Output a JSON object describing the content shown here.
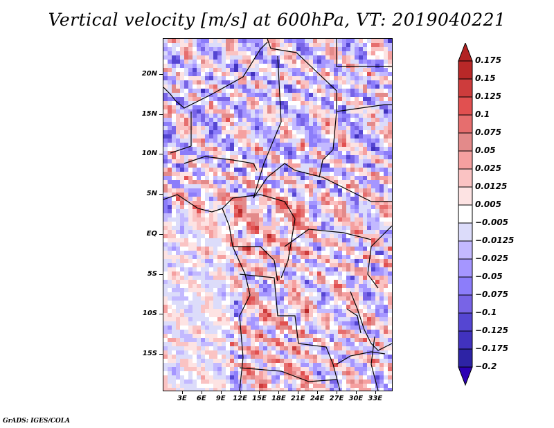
{
  "title": "Vertical velocity [m/s] at 600hPa, VT: 2019040221",
  "credit": "GrADS: IGES/COLA",
  "map": {
    "variable": "Vertical velocity",
    "units": "m/s",
    "level": "600hPa",
    "valid_time": "2019040221",
    "lat_range": [
      -19.5,
      24.5
    ],
    "lon_range": [
      0,
      35.5
    ],
    "lat_ticks": [
      {
        "value": 20,
        "label": "20N"
      },
      {
        "value": 15,
        "label": "15N"
      },
      {
        "value": 10,
        "label": "10N"
      },
      {
        "value": 5,
        "label": "5N"
      },
      {
        "value": 0,
        "label": "EQ"
      },
      {
        "value": -5,
        "label": "5S"
      },
      {
        "value": -10,
        "label": "10S"
      },
      {
        "value": -15,
        "label": "15S"
      }
    ],
    "lon_ticks": [
      {
        "value": 3,
        "label": "3E"
      },
      {
        "value": 6,
        "label": "6E"
      },
      {
        "value": 9,
        "label": "9E"
      },
      {
        "value": 12,
        "label": "12E"
      },
      {
        "value": 15,
        "label": "15E"
      },
      {
        "value": 18,
        "label": "18E"
      },
      {
        "value": 21,
        "label": "21E"
      },
      {
        "value": 24,
        "label": "24E"
      },
      {
        "value": 27,
        "label": "27E"
      },
      {
        "value": 30,
        "label": "30E"
      },
      {
        "value": 33,
        "label": "33E"
      }
    ]
  },
  "colorbar": {
    "levels": [
      {
        "label": "0.175",
        "color": "#b22222"
      },
      {
        "label": "0.15",
        "color": "#c83232"
      },
      {
        "label": "0.125",
        "color": "#dc4646"
      },
      {
        "label": "0.1",
        "color": "#e65a5a"
      },
      {
        "label": "0.075",
        "color": "#e87373"
      },
      {
        "label": "0.05",
        "color": "#e68c8c"
      },
      {
        "label": "0.025",
        "color": "#f5a0a0"
      },
      {
        "label": "0.0125",
        "color": "#fac8c8"
      },
      {
        "label": "0.005",
        "color": "#ffe6e6"
      },
      {
        "label": "-0.005",
        "color": "#ffffff"
      },
      {
        "label": "-0.0125",
        "color": "#dcdcff"
      },
      {
        "label": "-0.025",
        "color": "#bfb4ff"
      },
      {
        "label": "-0.05",
        "color": "#a08cff"
      },
      {
        "label": "-0.075",
        "color": "#8778f0"
      },
      {
        "label": "-0.1",
        "color": "#7060dc"
      },
      {
        "label": "-0.125",
        "color": "#5040c8"
      },
      {
        "label": "-0.175",
        "color": "#3c28b4"
      },
      {
        "label": "-0.2",
        "color": "#3220a0"
      }
    ],
    "top_arrow_color": "#b22222",
    "bottom_arrow_color": "#2c00b4",
    "bottom_segment_color": "#2c1e96"
  }
}
